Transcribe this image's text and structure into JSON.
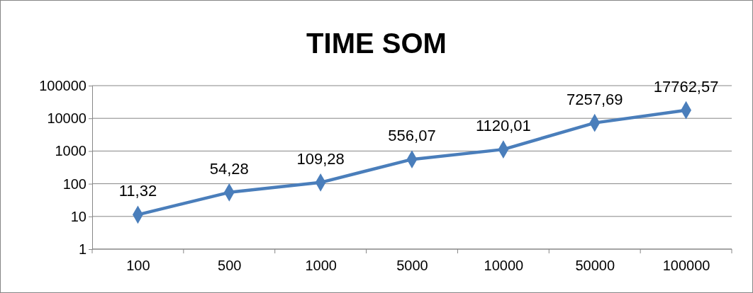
{
  "chart_data": {
    "type": "line",
    "title": "TIME SOM",
    "categories": [
      "100",
      "500",
      "1000",
      "5000",
      "10000",
      "50000",
      "100000"
    ],
    "series": [
      {
        "color": "#4a7ebb",
        "values": [
          11.32,
          54.28,
          109.28,
          556.07,
          1120.01,
          7257.69,
          17762.57
        ],
        "value_labels": [
          "11,32",
          "54,28",
          "109,28",
          "556,07",
          "1120,01",
          "7257,69",
          "17762,57"
        ]
      }
    ],
    "ylim": [
      1,
      100000
    ],
    "yticks": [
      1,
      10,
      100,
      1000,
      10000,
      100000
    ],
    "log": true,
    "grid": "y",
    "marker": "diamond",
    "line_style": "solid"
  }
}
